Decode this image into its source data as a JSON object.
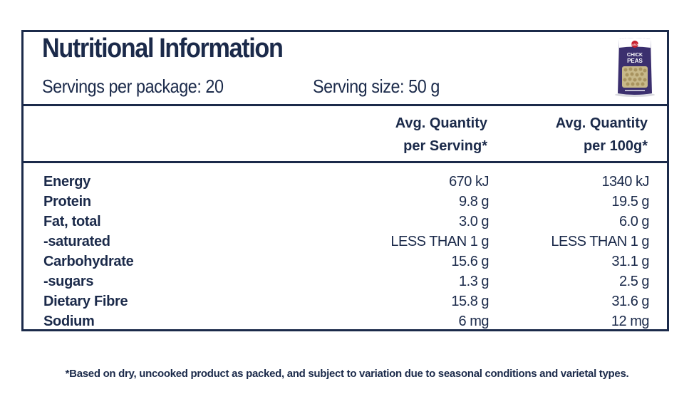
{
  "panel": {
    "title": "Nutritional Information",
    "servings_per_package": "Servings per package: 20",
    "serving_size": "Serving size: 50 g"
  },
  "product_image": {
    "icon": "chick-peas-bag-icon",
    "brand_badge": "SEASONS",
    "label_line1": "CHICK",
    "label_line2": "PEAS"
  },
  "columns": {
    "per_serving_line1": "Avg. Quantity",
    "per_serving_line2": "per Serving*",
    "per_100g_line1": "Avg. Quantity",
    "per_100g_line2": "per 100g*"
  },
  "nutrients": [
    {
      "name": "Energy",
      "per_serving": "670 kJ",
      "per_100g": "1340 kJ"
    },
    {
      "name": "Protein",
      "per_serving": "9.8 g",
      "per_100g": "19.5 g"
    },
    {
      "name": "Fat, total",
      "per_serving": "3.0 g",
      "per_100g": "6.0 g"
    },
    {
      "name": "-saturated",
      "per_serving": "LESS THAN 1 g",
      "per_100g": "LESS THAN 1 g"
    },
    {
      "name": "Carbohydrate",
      "per_serving": "15.6 g",
      "per_100g": "31.1 g"
    },
    {
      "name": "-sugars",
      "per_serving": "1.3 g",
      "per_100g": "2.5 g"
    },
    {
      "name": "Dietary Fibre",
      "per_serving": "15.8 g",
      "per_100g": "31.6 g"
    },
    {
      "name": "Sodium",
      "per_serving": "6 mg",
      "per_100g": "12 mg"
    }
  ],
  "footnote": "*Based on dry, uncooked product as packed, and subject to variation due to seasonal conditions and varietal types.",
  "colors": {
    "ink": "#1b2a4a",
    "bag_purple": "#3b2f6e",
    "bag_red": "#c8202f"
  }
}
